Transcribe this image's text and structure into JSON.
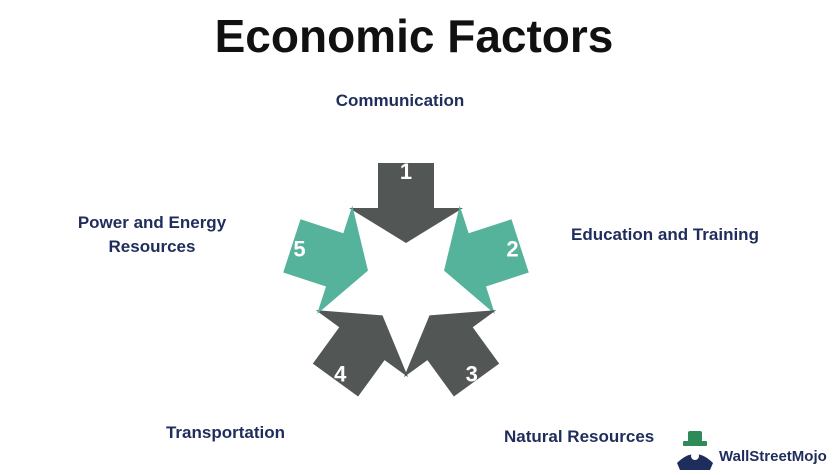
{
  "title": "Economic Factors",
  "colors": {
    "title": "#111111",
    "label": "#1f2d5c",
    "dark_arrow": "#525654",
    "teal_arrow": "#55b29b",
    "logo": "#1f2d5c",
    "logo_accent": "#2e8b57"
  },
  "factors": [
    {
      "number": "1",
      "label_lines": [
        "Communication"
      ],
      "color": "dark"
    },
    {
      "number": "2",
      "label_lines": [
        "Education and Training"
      ],
      "color": "teal"
    },
    {
      "number": "3",
      "label_lines": [
        "Natural Resources"
      ],
      "color": "dark"
    },
    {
      "number": "4",
      "label_lines": [
        "Transportation"
      ],
      "color": "dark"
    },
    {
      "number": "5",
      "label_lines": [
        "Power and Energy",
        "Resources"
      ],
      "color": "teal"
    }
  ],
  "logo": {
    "text": "WallStreetMojo",
    "icon": "wallstreetmojo-mascot-icon"
  }
}
